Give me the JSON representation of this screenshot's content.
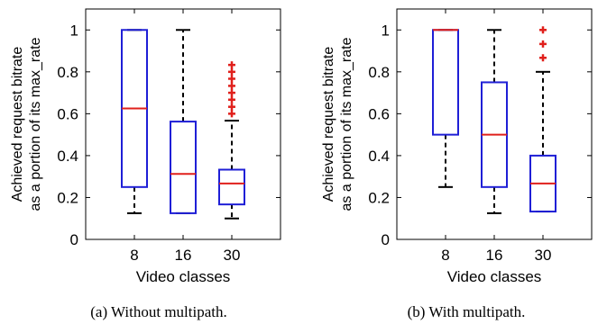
{
  "chart_data": [
    {
      "type": "box",
      "caption": "(a) Without multipath.",
      "xlabel": "Video classes",
      "ylabel_lines": [
        "Achieved request bitrate",
        "as a portion of its max_rate"
      ],
      "ylim": [
        0,
        1.1
      ],
      "yticks": [
        "0",
        "0.2",
        "0.4",
        "0.6",
        "0.8",
        "1"
      ],
      "categories": [
        "8",
        "16",
        "30"
      ],
      "boxes": [
        {
          "category": "8",
          "whisker_low": 0.125,
          "q1": 0.25,
          "median": 0.625,
          "q3": 1.0,
          "whisker_high": 1.0,
          "outliers": []
        },
        {
          "category": "16",
          "whisker_low": 0.125,
          "q1": 0.125,
          "median": 0.3125,
          "q3": 0.5625,
          "whisker_high": 1.0,
          "outliers": []
        },
        {
          "category": "30",
          "whisker_low": 0.1,
          "q1": 0.167,
          "median": 0.267,
          "q3": 0.333,
          "whisker_high": 0.567,
          "outliers": [
            0.6,
            0.633,
            0.667,
            0.7,
            0.733,
            0.767,
            0.8,
            0.833
          ]
        }
      ]
    },
    {
      "type": "box",
      "caption": "(b) With multipath.",
      "xlabel": "Video classes",
      "ylabel_lines": [
        "Achieved request bitrate",
        "as a portion of its max_rate"
      ],
      "ylim": [
        0,
        1.1
      ],
      "yticks": [
        "0",
        "0.2",
        "0.4",
        "0.6",
        "0.8",
        "1"
      ],
      "categories": [
        "8",
        "16",
        "30"
      ],
      "boxes": [
        {
          "category": "8",
          "whisker_low": 0.25,
          "q1": 0.5,
          "median": 1.0,
          "q3": 1.0,
          "whisker_high": 1.0,
          "outliers": []
        },
        {
          "category": "16",
          "whisker_low": 0.125,
          "q1": 0.25,
          "median": 0.5,
          "q3": 0.75,
          "whisker_high": 1.0,
          "outliers": []
        },
        {
          "category": "30",
          "whisker_low": 0.133,
          "q1": 0.133,
          "median": 0.267,
          "q3": 0.4,
          "whisker_high": 0.8,
          "outliers": [
            0.867,
            0.933,
            1.0
          ]
        }
      ]
    }
  ],
  "colors": {
    "box": "#1f1fd6",
    "median": "#e0201c",
    "whisker": "#000000",
    "outlier": "#e0201c",
    "axes": "#000000"
  }
}
